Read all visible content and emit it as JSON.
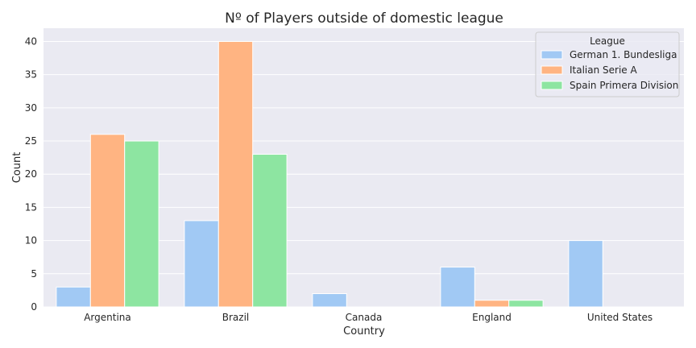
{
  "chart_data": {
    "type": "bar",
    "title": "Nº of Players outside of domestic league",
    "xlabel": "Country",
    "ylabel": "Count",
    "categories": [
      "Argentina",
      "Brazil",
      "Canada",
      "England",
      "United States"
    ],
    "ylim": [
      0,
      42
    ],
    "yticks": [
      0,
      5,
      10,
      15,
      20,
      25,
      30,
      35,
      40
    ],
    "grid": true,
    "legend": {
      "title": "League",
      "placement": "top-right"
    },
    "series": [
      {
        "name": "German 1. Bundesliga",
        "color": "#a1c9f4",
        "values": [
          3,
          13,
          2,
          6,
          10
        ]
      },
      {
        "name": "Italian Serie A",
        "color": "#ffb482",
        "values": [
          26,
          40,
          0,
          1,
          0
        ]
      },
      {
        "name": "Spain Primera Division",
        "color": "#8de5a1",
        "values": [
          25,
          23,
          0,
          1,
          0
        ]
      }
    ]
  },
  "style": {
    "plot_bg": "#eaeaf2",
    "grid_color": "#ffffff"
  }
}
